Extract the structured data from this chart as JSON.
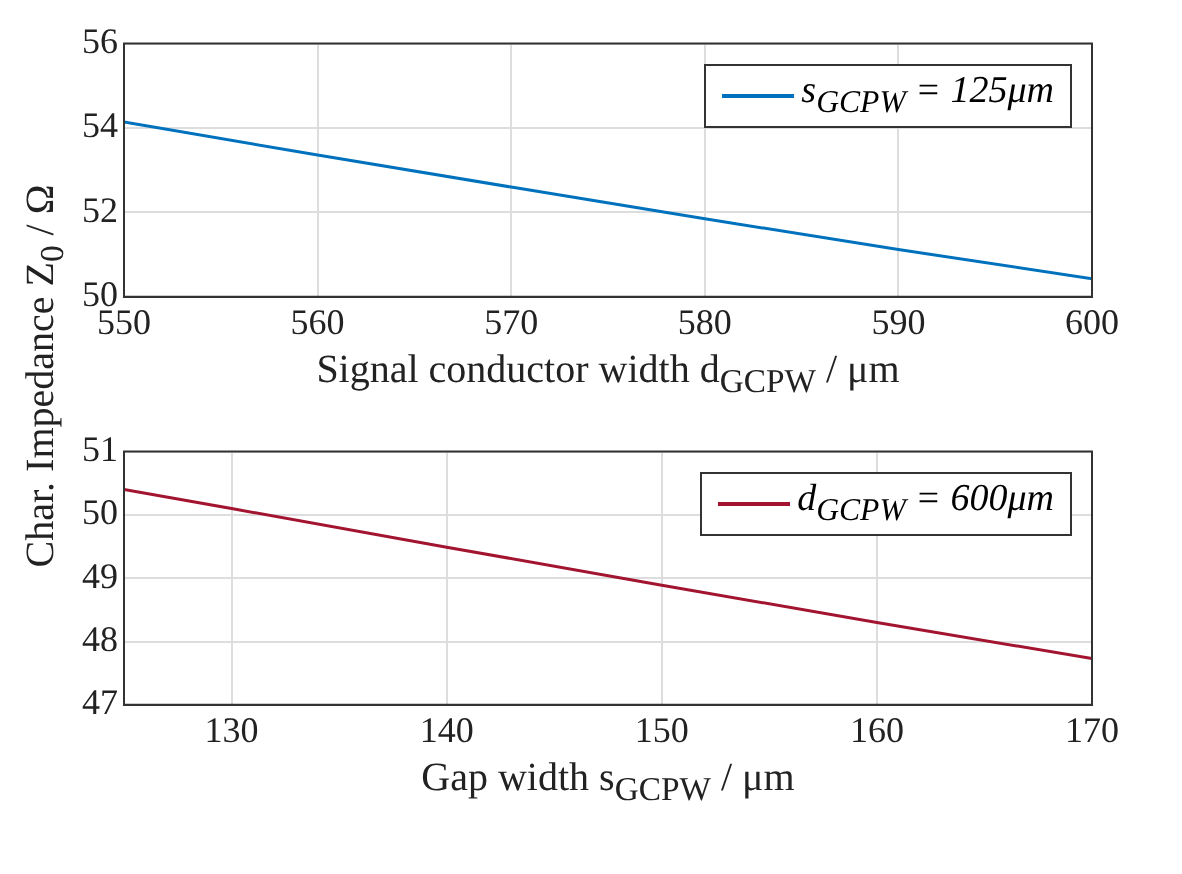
{
  "chart_data": [
    {
      "type": "line",
      "ylabel": "Char. Impedance Z$_{0}$ / Ω",
      "xlabel": "Signal conductor width d$_{GCPW}$ / μm",
      "x": [
        550,
        560,
        570,
        580,
        590,
        600
      ],
      "xlim": [
        550,
        600
      ],
      "xticks": [
        550,
        560,
        570,
        580,
        590,
        600
      ],
      "ylim": [
        50,
        56
      ],
      "yticks": [
        50,
        52,
        54,
        56
      ],
      "grid": true,
      "legend": "top right",
      "series": [
        {
          "name": "s$_{GCPW}$ = 125μm",
          "color": "#0072bd",
          "values": [
            54.14,
            53.36,
            52.6,
            51.85,
            51.12,
            50.43
          ]
        }
      ]
    },
    {
      "type": "line",
      "xlabel": "Gap width s$_{GCPW}$ / μm",
      "x": [
        125,
        130,
        140,
        150,
        160,
        170
      ],
      "xlim": [
        125,
        170
      ],
      "xticks": [
        130,
        140,
        150,
        160,
        170
      ],
      "ylim": [
        47,
        51
      ],
      "yticks": [
        47,
        48,
        49,
        50,
        51
      ],
      "grid": true,
      "legend": "top right",
      "series": [
        {
          "name": "d$_{GCPW}$ = 600μm",
          "color": "#a2142f",
          "values": [
            50.4,
            50.1,
            49.49,
            48.89,
            48.3,
            47.73
          ]
        }
      ]
    }
  ]
}
